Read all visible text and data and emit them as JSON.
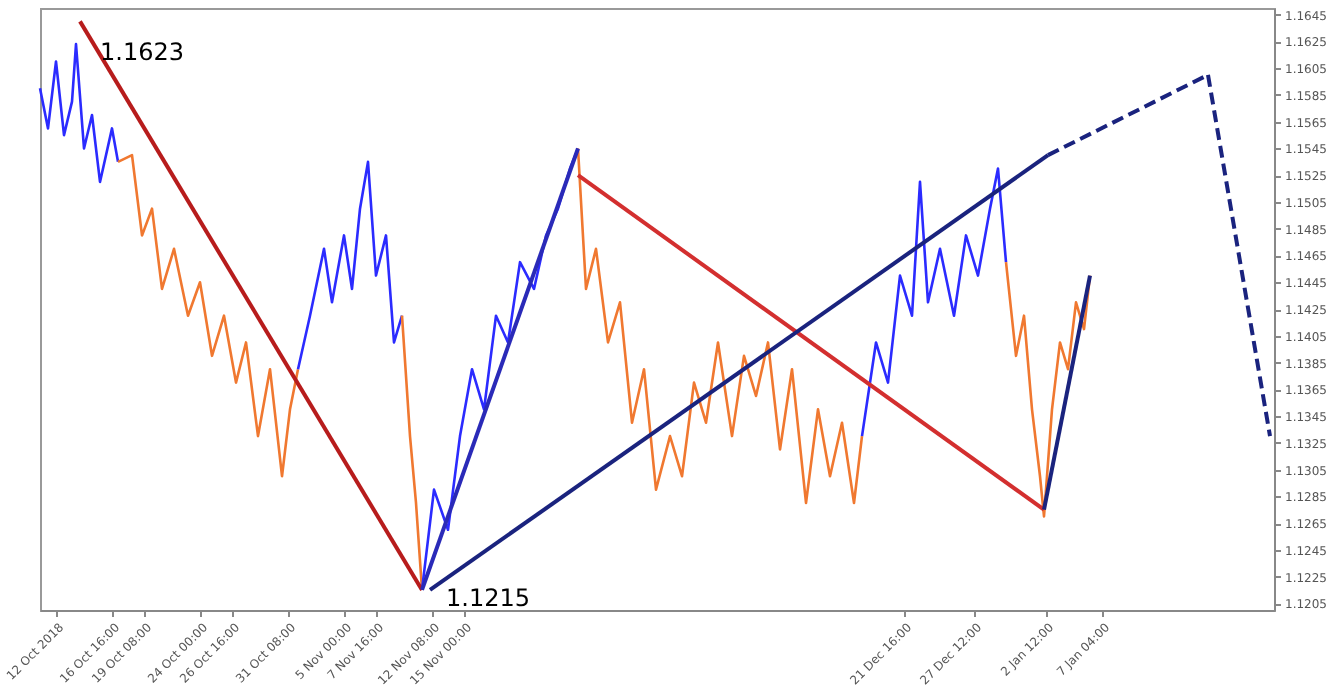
{
  "chart_data": {
    "type": "line",
    "xlim": [
      "2018-10-10T16:00",
      "2019-01-21T12:00"
    ],
    "ylim": [
      1.12,
      1.165
    ],
    "xticks": [
      {
        "value": "2018-10-12",
        "label": "12 Oct 2018"
      },
      {
        "value": "2018-10-16T16:00",
        "label": "16 Oct 16:00"
      },
      {
        "value": "2018-10-19T08:00",
        "label": "19 Oct 08:00"
      },
      {
        "value": "2018-10-24",
        "label": "24 Oct 00:00"
      },
      {
        "value": "2018-10-26T16:00",
        "label": "26 Oct 16:00"
      },
      {
        "value": "2018-10-31T08:00",
        "label": "31 Oct 08:00"
      },
      {
        "value": "2018-11-05",
        "label": "5 Nov 00:00"
      },
      {
        "value": "2018-11-07T16:00",
        "label": "7 Nov 16:00"
      },
      {
        "value": "2018-11-12T08:00",
        "label": "12 Nov 08:00"
      },
      {
        "value": "2018-11-15",
        "label": "15 Nov 00:00"
      },
      {
        "value": "2018-12-21T16:00",
        "label": "21 Dec 16:00"
      },
      {
        "value": "2018-12-27T12:00",
        "label": "27 Dec 12:00"
      },
      {
        "value": "2019-01-02T12:00",
        "label": "2 Jan 12:00"
      },
      {
        "value": "2019-01-07T04:00",
        "label": "7 Jan 04:00"
      }
    ],
    "yticks": [
      1.1205,
      1.1225,
      1.1245,
      1.1265,
      1.1285,
      1.1305,
      1.1325,
      1.1345,
      1.1365,
      1.1385,
      1.1405,
      1.1425,
      1.1445,
      1.1465,
      1.1485,
      1.1505,
      1.1525,
      1.1545,
      1.1565,
      1.1585,
      1.1605,
      1.1625,
      1.1645
    ],
    "grid": false,
    "line_style": "solid",
    "series": [
      {
        "color": "#2b2bff",
        "x": [
          "2018-10-10T16:00",
          "2018-10-11T08:00",
          "2018-10-12",
          "2018-10-12T16:00",
          "2018-10-13T08:00",
          "2018-10-13T16:00",
          "2018-10-14T08:00",
          "2018-10-15",
          "2018-10-15T16:00",
          "2018-10-16T16:00",
          "2018-10-17T04:00"
        ],
        "values": [
          1.159,
          1.156,
          1.161,
          1.1555,
          1.158,
          1.1623,
          1.1545,
          1.157,
          1.152,
          1.156,
          1.1535
        ]
      },
      {
        "color": "#f07830",
        "x": [
          "2018-10-17T04:00",
          "2018-10-18T08:00",
          "2018-10-19T04:00",
          "2018-10-20",
          "2018-10-20T20:00",
          "2018-10-21T20:00",
          "2018-10-23",
          "2018-10-24",
          "2018-10-25",
          "2018-10-26",
          "2018-10-27",
          "2018-10-27T20:00",
          "2018-10-28T20:00",
          "2018-10-29T20:00",
          "2018-10-30T20:00",
          "2018-10-31T12:00",
          "2018-11-01T04:00"
        ],
        "values": [
          1.1535,
          1.154,
          1.148,
          1.15,
          1.144,
          1.147,
          1.142,
          1.1445,
          1.139,
          1.142,
          1.137,
          1.14,
          1.133,
          1.138,
          1.13,
          1.135,
          1.138
        ]
      },
      {
        "color": "#2b2bff",
        "x": [
          "2018-11-01T04:00",
          "2018-11-02T04:00",
          "2018-11-03T08:00",
          "2018-11-04",
          "2018-11-05",
          "2018-11-05T16:00",
          "2018-11-06T08:00",
          "2018-11-07",
          "2018-11-07T16:00",
          "2018-11-08T12:00",
          "2018-11-09T04:00",
          "2018-11-09T20:00"
        ],
        "values": [
          1.138,
          1.142,
          1.147,
          1.143,
          1.148,
          1.144,
          1.15,
          1.1535,
          1.145,
          1.148,
          1.14,
          1.142
        ]
      },
      {
        "color": "#f07830",
        "x": [
          "2018-11-09T20:00",
          "2018-11-10T12:00",
          "2018-11-11",
          "2018-11-11T12:00"
        ],
        "values": [
          1.142,
          1.133,
          1.128,
          1.1215
        ]
      },
      {
        "color": "#2b2bff",
        "x": [
          "2018-11-11T12:00",
          "2018-11-12T12:00",
          "2018-11-13T16:00",
          "2018-11-14T16:00",
          "2018-11-15T16:00",
          "2018-11-16T16:00",
          "2018-11-17T16:00",
          "2018-11-18T16:00",
          "2018-11-19T16:00",
          "2018-11-20T20:00",
          "2018-11-21T20:00",
          "2018-11-22T20:00",
          "2018-11-23T20:00",
          "2018-11-24T12:00"
        ],
        "values": [
          1.1215,
          1.129,
          1.126,
          1.133,
          1.138,
          1.135,
          1.142,
          1.14,
          1.146,
          1.144,
          1.148,
          1.15,
          1.153,
          1.1545
        ]
      },
      {
        "color": "#f07830",
        "x": [
          "2018-11-24T12:00",
          "2018-11-25T04:00",
          "2018-11-26",
          "2018-11-27",
          "2018-11-28",
          "2018-11-29",
          "2018-11-30",
          "2018-12-01",
          "2018-12-02T04:00",
          "2018-12-03T04:00",
          "2018-12-04T04:00",
          "2018-12-05T04:00",
          "2018-12-06T04:00",
          "2018-12-07T08:00",
          "2018-12-08T08:00",
          "2018-12-09T08:00",
          "2018-12-10T08:00",
          "2018-12-11T08:00",
          "2018-12-12T08:00",
          "2018-12-13T12:00",
          "2018-12-14T12:00",
          "2018-12-15T12:00",
          "2018-12-16T12:00",
          "2018-12-17T12:00",
          "2018-12-18T04:00"
        ],
        "values": [
          1.1545,
          1.144,
          1.147,
          1.14,
          1.143,
          1.134,
          1.138,
          1.129,
          1.133,
          1.13,
          1.137,
          1.134,
          1.14,
          1.133,
          1.139,
          1.136,
          1.14,
          1.132,
          1.138,
          1.128,
          1.135,
          1.13,
          1.134,
          1.128,
          1.133
        ]
      },
      {
        "color": "#2b2bff",
        "x": [
          "2018-12-18T04:00",
          "2018-12-19T08:00",
          "2018-12-20T08:00",
          "2018-12-21T08:00",
          "2018-12-22T08:00",
          "2018-12-23",
          "2018-12-23T16:00",
          "2018-12-24T16:00",
          "2018-12-25T20:00",
          "2018-12-26T20:00",
          "2018-12-27T20:00",
          "2018-12-28T20:00",
          "2018-12-29T12:00",
          "2018-12-30T04:00"
        ],
        "values": [
          1.133,
          1.14,
          1.137,
          1.145,
          1.142,
          1.152,
          1.143,
          1.147,
          1.142,
          1.148,
          1.145,
          1.15,
          1.153,
          1.146
        ]
      },
      {
        "color": "#f07830",
        "x": [
          "2018-12-30T04:00",
          "2018-12-31",
          "2018-12-31T16:00",
          "2019-01-01T08:00",
          "2019-01-02",
          "2019-01-02T08:00",
          "2019-01-03",
          "2019-01-03T16:00",
          "2019-01-04T08:00",
          "2019-01-05",
          "2019-01-05T16:00",
          "2019-01-06T04:00"
        ],
        "values": [
          1.146,
          1.139,
          1.142,
          1.135,
          1.13,
          1.127,
          1.135,
          1.14,
          1.138,
          1.143,
          1.141,
          1.145
        ]
      },
      {
        "color": "#b71c1c",
        "x": [
          "2018-10-14",
          "2018-11-11T12:00"
        ],
        "values": [
          1.164,
          1.1215
        ]
      },
      {
        "color": "#2a2ab8",
        "x": [
          "2018-11-11T12:00",
          "2018-11-24T12:00"
        ],
        "values": [
          1.1215,
          1.1545
        ]
      },
      {
        "color": "#d32f2f",
        "x": [
          "2018-11-24T12:00",
          "2019-01-02T08:00"
        ],
        "values": [
          1.1525,
          1.1275
        ]
      },
      {
        "color": "#1a237e",
        "x": [
          "2018-11-12T04:00",
          "2019-01-02T16:00"
        ],
        "values": [
          1.1215,
          1.154
        ]
      },
      {
        "color": "#1a237e",
        "x": [
          "2019-01-02T08:00",
          "2019-01-06T04:00"
        ],
        "values": [
          1.1275,
          1.145
        ]
      },
      {
        "color": "#1a237e",
        "x": [
          "2019-01-02T16:00",
          "2019-01-16"
        ],
        "values": [
          1.154,
          1.16
        ],
        "line_style": "dashed"
      },
      {
        "color": "#1a237e",
        "x": [
          "2019-01-16",
          "2019-01-21T04:00"
        ],
        "values": [
          1.16,
          1.133
        ],
        "line_style": "dashed"
      }
    ],
    "annotations": [
      {
        "text": "1.1623",
        "x": "2018-10-13T16:00",
        "y": 1.1623
      },
      {
        "text": "1.1215",
        "x": "2018-11-11T12:00",
        "y": 1.1215
      }
    ]
  }
}
